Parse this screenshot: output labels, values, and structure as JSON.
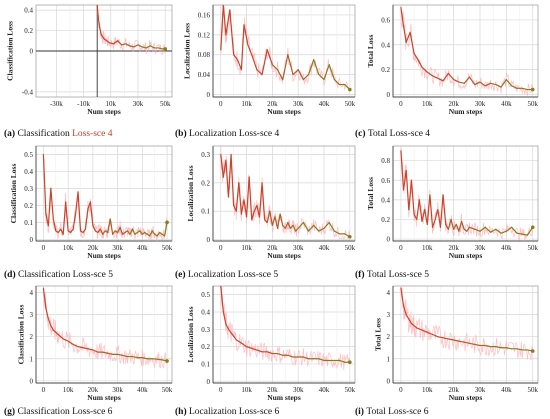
{
  "colors": {
    "raw": "#ffb3b8",
    "smooth_a": "#c9432a",
    "smooth_b": "#8a7a1f",
    "grid": "#d7d7d7",
    "frame": "#999999",
    "caption_accent": "#c0392b"
  },
  "chart_data": [
    {
      "id": "a",
      "type": "line",
      "x_dates": false,
      "caption_prefix": "(a) ",
      "caption_black": "Classification ",
      "caption_red": "Loss-sce 4",
      "xlabel": "Num steps",
      "ylabel": "Classification Loss",
      "xlim": [
        -45000,
        55000
      ],
      "ylim": [
        -0.45,
        0.45
      ],
      "xticks": [
        -30000,
        -10000,
        10000,
        30000,
        50000
      ],
      "xtick_labels": [
        "-30k",
        "-10k",
        "10k",
        "30k",
        "50k"
      ],
      "yticks": [
        -0.4,
        0,
        0.2,
        0.4
      ],
      "ytick_labels": [
        "-0.4",
        "0",
        "0.2",
        "0.4"
      ],
      "zero_axes": true,
      "grid": true,
      "series": [
        {
          "x": [
            0,
            1000,
            2000,
            3000,
            5000,
            7000,
            9000,
            12000,
            15000,
            18000,
            21000,
            24000,
            27000,
            30000,
            33000,
            36000,
            39000,
            42000,
            45000,
            48000,
            50000
          ],
          "y": [
            0.45,
            0.3,
            0.22,
            0.16,
            0.12,
            0.1,
            0.08,
            0.07,
            0.1,
            0.06,
            0.07,
            0.05,
            0.04,
            0.06,
            0.04,
            0.03,
            0.05,
            0.03,
            0.03,
            0.02,
            0.02
          ]
        }
      ]
    },
    {
      "id": "b",
      "type": "line",
      "caption_prefix": "(b) ",
      "caption_black": "Localization Loss-sce 4",
      "caption_red": "",
      "xlabel": "Num steps",
      "ylabel": "Localization Loss",
      "xlim": [
        -3000,
        52000
      ],
      "ylim": [
        -0.005,
        0.18
      ],
      "xticks": [
        0,
        10000,
        20000,
        30000,
        40000,
        50000
      ],
      "xtick_labels": [
        "0",
        "10k",
        "20k",
        "30k",
        "40k",
        "50k"
      ],
      "yticks": [
        0,
        0.04,
        0.08,
        0.12,
        0.16
      ],
      "ytick_labels": [
        "0",
        "0.04",
        "0.08",
        "0.12",
        "0.16"
      ],
      "grid": true,
      "series": [
        {
          "x": [
            0,
            1000,
            2000,
            3500,
            5000,
            6500,
            8000,
            9000,
            10500,
            12000,
            14000,
            16000,
            18000,
            20000,
            22000,
            24000,
            26000,
            28000,
            30000,
            32000,
            34000,
            36000,
            38000,
            40000,
            42000,
            44000,
            46000,
            48000,
            50000
          ],
          "y": [
            0.09,
            0.18,
            0.12,
            0.17,
            0.08,
            0.07,
            0.05,
            0.14,
            0.1,
            0.08,
            0.05,
            0.04,
            0.09,
            0.06,
            0.05,
            0.03,
            0.08,
            0.04,
            0.05,
            0.03,
            0.04,
            0.07,
            0.04,
            0.03,
            0.06,
            0.03,
            0.02,
            0.02,
            0.01
          ]
        }
      ]
    },
    {
      "id": "c",
      "type": "line",
      "caption_prefix": "(c) ",
      "caption_black": "Total Loss-sce 4",
      "caption_red": "",
      "xlabel": "Num steps",
      "ylabel": "Total Loss",
      "xlim": [
        -3000,
        52000
      ],
      "ylim": [
        -0.02,
        0.72
      ],
      "xticks": [
        0,
        10000,
        20000,
        30000,
        40000,
        50000
      ],
      "xtick_labels": [
        "0",
        "10k",
        "20k",
        "30k",
        "40k",
        "50k"
      ],
      "yticks": [
        0,
        0.2,
        0.4,
        0.6
      ],
      "ytick_labels": [
        "0",
        "0.2",
        "0.4",
        "0.6"
      ],
      "grid": true,
      "series": [
        {
          "x": [
            0,
            1000,
            2000,
            3500,
            5000,
            6500,
            8000,
            10000,
            12000,
            14000,
            16000,
            18000,
            20000,
            22000,
            24000,
            26000,
            28000,
            30000,
            32000,
            34000,
            36000,
            38000,
            40000,
            42000,
            44000,
            46000,
            48000,
            50000
          ],
          "y": [
            0.7,
            0.55,
            0.42,
            0.5,
            0.33,
            0.28,
            0.22,
            0.18,
            0.15,
            0.13,
            0.11,
            0.17,
            0.12,
            0.1,
            0.09,
            0.14,
            0.08,
            0.1,
            0.07,
            0.09,
            0.08,
            0.06,
            0.12,
            0.07,
            0.05,
            0.05,
            0.04,
            0.04
          ]
        }
      ]
    },
    {
      "id": "d",
      "type": "line",
      "caption_prefix": "(d) ",
      "caption_black": "Classification Loss-sce 5",
      "caption_red": "",
      "xlabel": "Num steps",
      "ylabel": "Classification Loss",
      "xlim": [
        -3000,
        52000
      ],
      "ylim": [
        -0.01,
        0.55
      ],
      "xticks": [
        0,
        10000,
        20000,
        30000,
        40000,
        50000
      ],
      "xtick_labels": [
        "0",
        "10k",
        "20k",
        "30k",
        "40k",
        "50k"
      ],
      "yticks": [
        0,
        0.1,
        0.2,
        0.3,
        0.4,
        0.5
      ],
      "ytick_labels": [
        "0",
        "0.1",
        "0.2",
        "0.3",
        "0.4",
        "0.5"
      ],
      "grid": true,
      "series": [
        {
          "x": [
            0,
            1000,
            2000,
            3000,
            4000,
            5000,
            6000,
            7000,
            8000,
            9000,
            10000,
            11000,
            12000,
            13000,
            14000,
            15000,
            16000,
            17000,
            18000,
            19000,
            20000,
            21000,
            22000,
            23000,
            24000,
            25000,
            26000,
            27000,
            28000,
            29000,
            30000,
            31000,
            32000,
            33000,
            34000,
            35000,
            36000,
            37000,
            38000,
            39000,
            40000,
            41000,
            42000,
            43000,
            44000,
            45000,
            46000,
            47000,
            48000,
            49000,
            50000
          ],
          "y": [
            0.5,
            0.15,
            0.08,
            0.3,
            0.12,
            0.05,
            0.04,
            0.06,
            0.03,
            0.22,
            0.05,
            0.04,
            0.06,
            0.15,
            0.28,
            0.05,
            0.04,
            0.06,
            0.18,
            0.22,
            0.08,
            0.05,
            0.04,
            0.06,
            0.03,
            0.05,
            0.04,
            0.12,
            0.03,
            0.05,
            0.04,
            0.07,
            0.03,
            0.04,
            0.05,
            0.03,
            0.06,
            0.03,
            0.04,
            0.05,
            0.03,
            0.04,
            0.03,
            0.02,
            0.05,
            0.03,
            0.02,
            0.04,
            0.03,
            0.02,
            0.1
          ]
        }
      ]
    },
    {
      "id": "e",
      "type": "line",
      "caption_prefix": "(e) ",
      "caption_black": "Localization Loss-sce 5",
      "caption_red": "",
      "xlabel": "Num steps",
      "ylabel": "Localization Loss",
      "xlim": [
        -3000,
        52000
      ],
      "ylim": [
        -0.005,
        0.33
      ],
      "xticks": [
        0,
        10000,
        20000,
        30000,
        40000,
        50000
      ],
      "xtick_labels": [
        "0",
        "10k",
        "20k",
        "30k",
        "40k",
        "50k"
      ],
      "yticks": [
        0,
        0.1,
        0.2,
        0.3
      ],
      "ytick_labels": [
        "0",
        "0.1",
        "0.2",
        "0.3"
      ],
      "grid": true,
      "series": [
        {
          "x": [
            0,
            1000,
            2000,
            3000,
            4000,
            5000,
            6000,
            7000,
            8000,
            9000,
            10000,
            11000,
            12000,
            13000,
            14000,
            15000,
            16000,
            17000,
            18000,
            19000,
            20000,
            21000,
            22000,
            23000,
            24000,
            25000,
            26000,
            27000,
            28000,
            29000,
            30000,
            32000,
            34000,
            36000,
            38000,
            40000,
            42000,
            44000,
            46000,
            48000,
            50000
          ],
          "y": [
            0.3,
            0.22,
            0.28,
            0.15,
            0.3,
            0.12,
            0.1,
            0.2,
            0.09,
            0.14,
            0.08,
            0.22,
            0.07,
            0.1,
            0.12,
            0.08,
            0.2,
            0.07,
            0.06,
            0.1,
            0.05,
            0.08,
            0.04,
            0.09,
            0.05,
            0.04,
            0.06,
            0.04,
            0.05,
            0.03,
            0.04,
            0.06,
            0.03,
            0.05,
            0.03,
            0.04,
            0.06,
            0.03,
            0.02,
            0.02,
            0.01
          ]
        }
      ]
    },
    {
      "id": "f",
      "type": "line",
      "caption_prefix": "(f) ",
      "caption_black": "Total Loss-sce 5",
      "caption_red": "",
      "xlabel": "Num steps",
      "ylabel": "Total Loss",
      "xlim": [
        -3000,
        52000
      ],
      "ylim": [
        -0.02,
        0.95
      ],
      "xticks": [
        0,
        10000,
        20000,
        30000,
        40000,
        50000
      ],
      "xtick_labels": [
        "0",
        "10k",
        "20k",
        "30k",
        "40k",
        "50k"
      ],
      "yticks": [
        0,
        0.2,
        0.4,
        0.6,
        0.8
      ],
      "ytick_labels": [
        "0",
        "0.2",
        "0.4",
        "0.6",
        "0.8"
      ],
      "grid": true,
      "series": [
        {
          "x": [
            0,
            1000,
            2000,
            3000,
            4000,
            5000,
            6000,
            7000,
            8000,
            9000,
            10000,
            11000,
            12000,
            13000,
            14000,
            15000,
            16000,
            17000,
            18000,
            19000,
            20000,
            21000,
            22000,
            23000,
            24000,
            25000,
            26000,
            28000,
            30000,
            32000,
            34000,
            36000,
            38000,
            40000,
            42000,
            44000,
            46000,
            48000,
            50000
          ],
          "y": [
            0.9,
            0.5,
            0.7,
            0.3,
            0.6,
            0.25,
            0.2,
            0.4,
            0.18,
            0.3,
            0.15,
            0.45,
            0.12,
            0.2,
            0.3,
            0.12,
            0.45,
            0.15,
            0.1,
            0.2,
            0.1,
            0.15,
            0.08,
            0.18,
            0.1,
            0.08,
            0.12,
            0.1,
            0.08,
            0.12,
            0.07,
            0.1,
            0.06,
            0.08,
            0.12,
            0.06,
            0.05,
            0.04,
            0.12
          ]
        }
      ]
    },
    {
      "id": "g",
      "type": "line",
      "caption_prefix": "(g) ",
      "caption_black": "Classification Loss-sce 6",
      "caption_red": "",
      "xlabel": "Num steps",
      "ylabel": "Classification Loss",
      "xlim": [
        -3000,
        52000
      ],
      "ylim": [
        -0.1,
        4.3
      ],
      "xticks": [
        0,
        10000,
        20000,
        30000,
        40000,
        50000
      ],
      "xtick_labels": [
        "0",
        "10k",
        "20k",
        "30k",
        "40k",
        "50k"
      ],
      "yticks": [
        0,
        1,
        2,
        3,
        4
      ],
      "ytick_labels": [
        "0",
        "1",
        "2",
        "3",
        "4"
      ],
      "grid": true,
      "series": [
        {
          "x": [
            0,
            1000,
            2000,
            3000,
            4000,
            5000,
            6000,
            8000,
            10000,
            12000,
            14000,
            16000,
            18000,
            20000,
            22000,
            24000,
            26000,
            28000,
            30000,
            32000,
            34000,
            36000,
            38000,
            40000,
            42000,
            44000,
            46000,
            48000,
            50000
          ],
          "y": [
            4.2,
            3.3,
            2.8,
            2.5,
            2.3,
            2.2,
            2.1,
            1.9,
            1.8,
            1.65,
            1.55,
            1.5,
            1.45,
            1.4,
            1.3,
            1.3,
            1.25,
            1.2,
            1.2,
            1.15,
            1.1,
            1.1,
            1.05,
            1.05,
            1.0,
            1.0,
            0.98,
            0.95,
            0.9
          ]
        }
      ]
    },
    {
      "id": "h",
      "type": "line",
      "caption_prefix": "(h) ",
      "caption_black": "Localization Loss-sce 6",
      "caption_red": "",
      "xlabel": "Num steps",
      "ylabel": "Localization Loss",
      "xlim": [
        -3000,
        52000
      ],
      "ylim": [
        -0.01,
        0.55
      ],
      "xticks": [
        0,
        10000,
        20000,
        30000,
        40000,
        50000
      ],
      "xtick_labels": [
        "0",
        "10k",
        "20k",
        "30k",
        "40k",
        "50k"
      ],
      "yticks": [
        0,
        0.1,
        0.2,
        0.3,
        0.4,
        0.5
      ],
      "ytick_labels": [
        "0",
        "0.1",
        "0.2",
        "0.3",
        "0.4",
        "0.5"
      ],
      "grid": true,
      "series": [
        {
          "x": [
            0,
            1000,
            2000,
            3000,
            4000,
            5000,
            6000,
            8000,
            10000,
            12000,
            14000,
            16000,
            18000,
            20000,
            22000,
            24000,
            26000,
            28000,
            30000,
            32000,
            34000,
            36000,
            38000,
            40000,
            42000,
            44000,
            46000,
            48000,
            50000
          ],
          "y": [
            0.55,
            0.4,
            0.33,
            0.3,
            0.28,
            0.26,
            0.24,
            0.22,
            0.2,
            0.19,
            0.18,
            0.17,
            0.17,
            0.16,
            0.16,
            0.15,
            0.15,
            0.14,
            0.14,
            0.14,
            0.13,
            0.13,
            0.13,
            0.12,
            0.12,
            0.12,
            0.12,
            0.11,
            0.11
          ]
        }
      ]
    },
    {
      "id": "i",
      "type": "line",
      "caption_prefix": "(i) ",
      "caption_black": "Total Loss-sce 6",
      "caption_red": "",
      "xlabel": "Num steps",
      "ylabel": "Total Loss",
      "xlim": [
        -3000,
        52000
      ],
      "ylim": [
        -0.1,
        4.3
      ],
      "xticks": [
        0,
        10000,
        20000,
        30000,
        40000,
        50000
      ],
      "xtick_labels": [
        "0",
        "10k",
        "20k",
        "30k",
        "40k",
        "50k"
      ],
      "yticks": [
        0,
        1,
        2,
        3,
        4
      ],
      "ytick_labels": [
        "0",
        "1",
        "2",
        "3",
        "4"
      ],
      "grid": true,
      "series": [
        {
          "x": [
            0,
            1000,
            2000,
            3000,
            4000,
            5000,
            6000,
            8000,
            10000,
            12000,
            14000,
            16000,
            18000,
            20000,
            22000,
            24000,
            26000,
            28000,
            30000,
            32000,
            34000,
            36000,
            38000,
            40000,
            42000,
            44000,
            46000,
            48000,
            50000
          ],
          "y": [
            4.2,
            3.4,
            3.0,
            2.8,
            2.6,
            2.5,
            2.4,
            2.3,
            2.2,
            2.1,
            2.0,
            1.95,
            1.9,
            1.85,
            1.8,
            1.75,
            1.7,
            1.65,
            1.6,
            1.6,
            1.55,
            1.55,
            1.5,
            1.5,
            1.45,
            1.45,
            1.4,
            1.4,
            1.35
          ]
        }
      ]
    }
  ]
}
